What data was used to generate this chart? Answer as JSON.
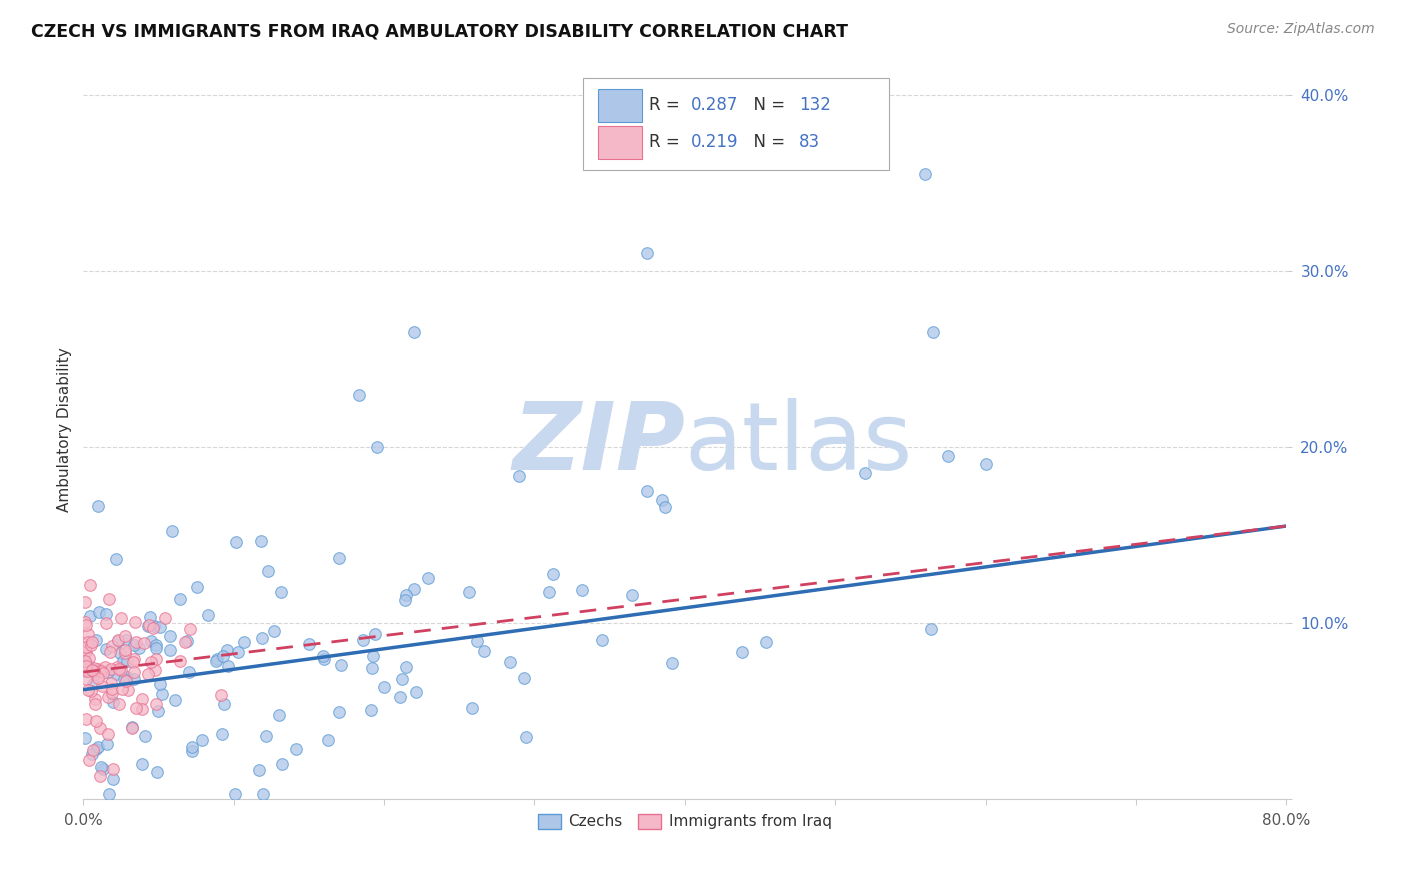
{
  "title": "CZECH VS IMMIGRANTS FROM IRAQ AMBULATORY DISABILITY CORRELATION CHART",
  "source": "Source: ZipAtlas.com",
  "ylabel": "Ambulatory Disability",
  "legend_labels": [
    "Czechs",
    "Immigrants from Iraq"
  ],
  "czech_R": 0.287,
  "czech_N": 132,
  "iraq_R": 0.219,
  "iraq_N": 83,
  "czech_color": "#aec6e8",
  "czech_edge_color": "#5b9bd5",
  "czech_line_color": "#2e6db4",
  "iraq_color": "#f5b8c8",
  "iraq_edge_color": "#e87090",
  "iraq_line_color": "#d04060",
  "watermark_color": "#c8d8ee",
  "background_color": "#ffffff",
  "grid_color": "#cccccc",
  "xlim": [
    0.0,
    0.8
  ],
  "ylim": [
    0.0,
    0.42
  ],
  "czech_trend_x0": 0.0,
  "czech_trend_x1": 0.8,
  "czech_trend_y0": 0.062,
  "czech_trend_y1": 0.155,
  "iraq_trend_x0": 0.0,
  "iraq_trend_x1": 0.8,
  "iraq_trend_y0": 0.072,
  "iraq_trend_y1": 0.155
}
